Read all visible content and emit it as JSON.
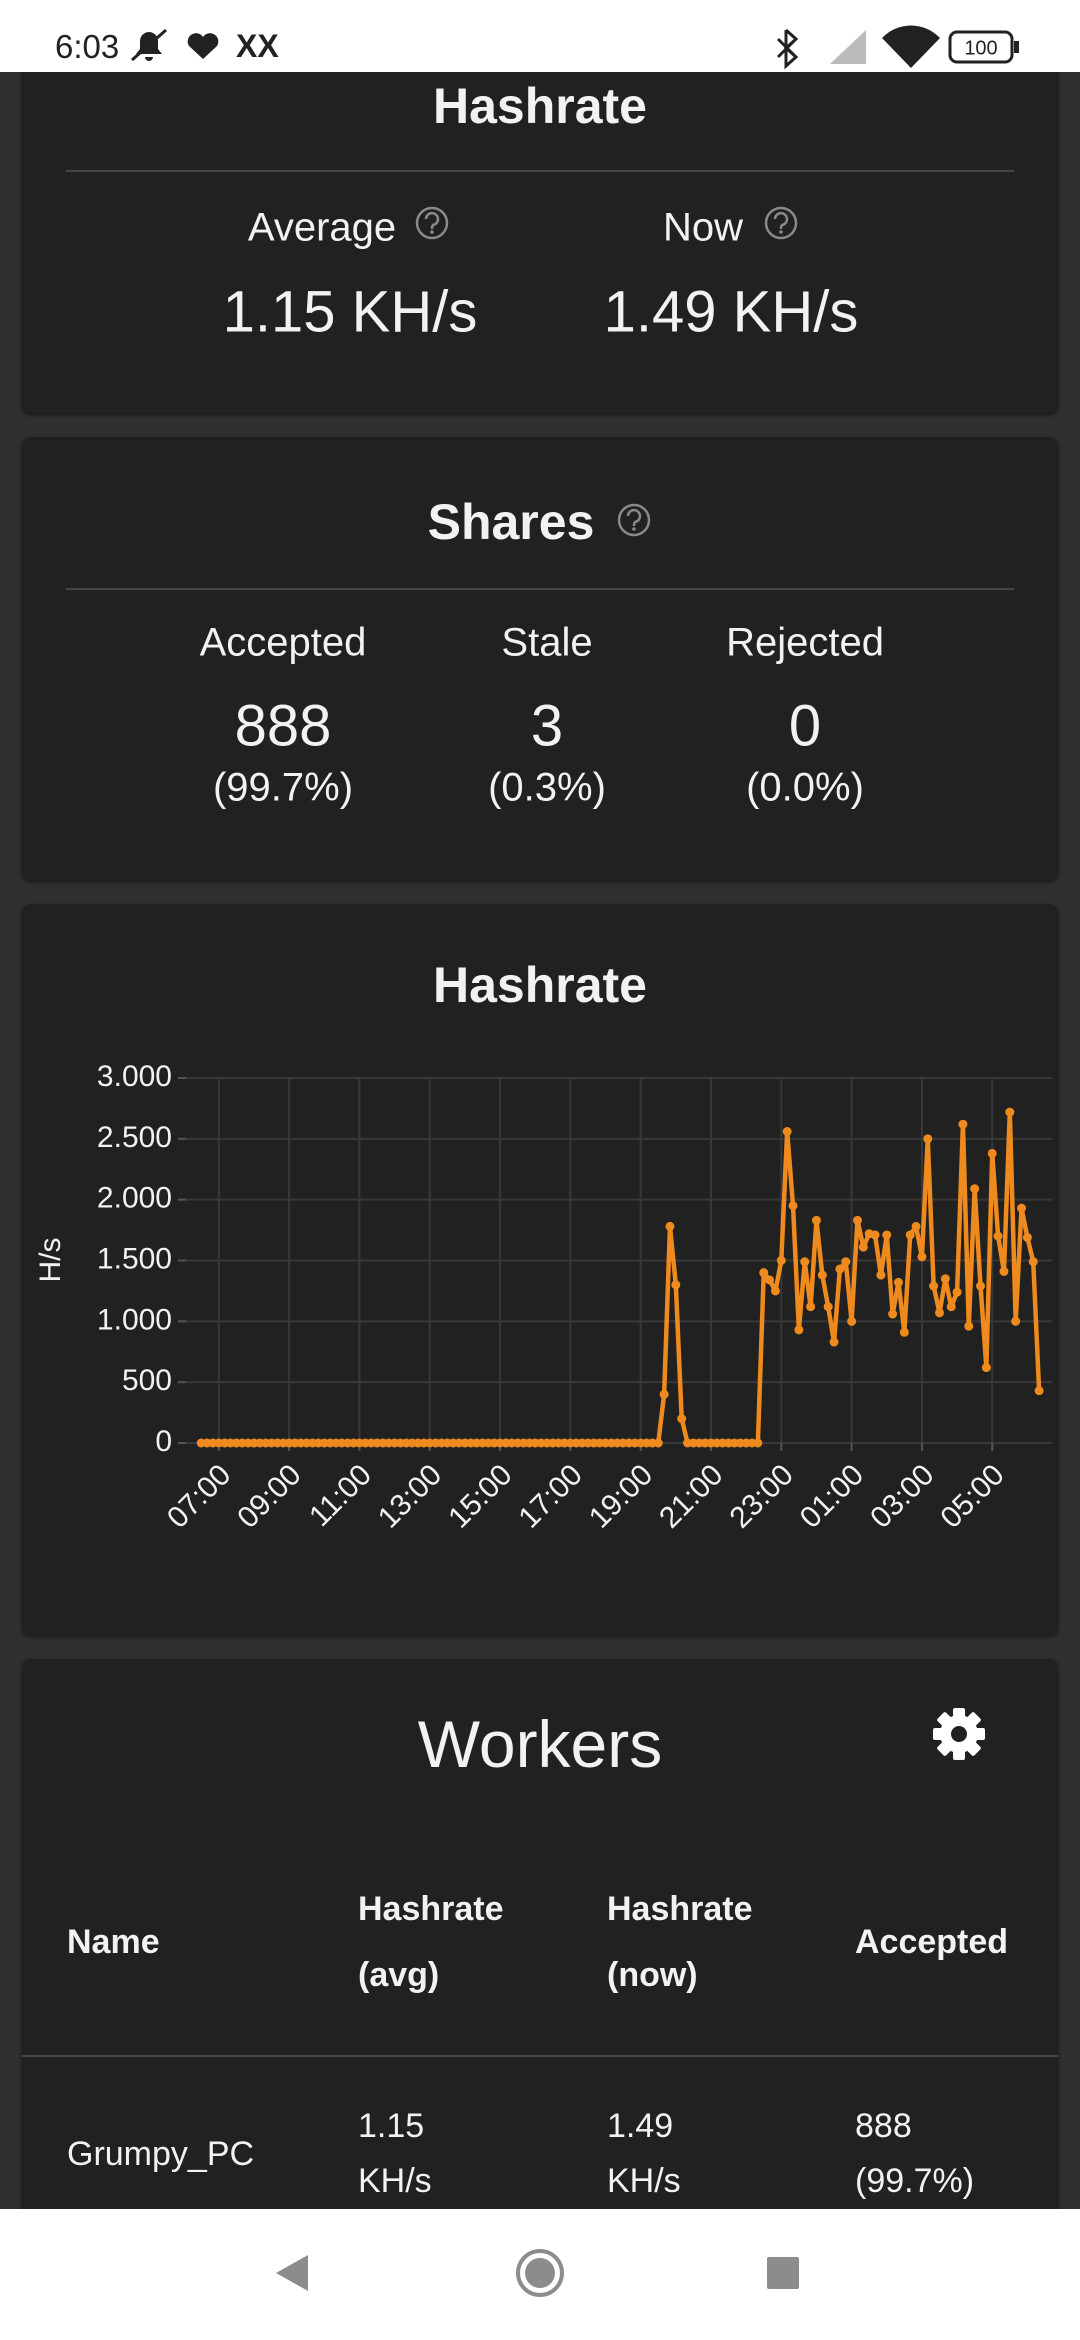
{
  "status_bar": {
    "time": "6:03",
    "carrier": "XX",
    "battery": "100"
  },
  "hashrate_card": {
    "title": "Hashrate",
    "average": {
      "label": "Average",
      "value": "1.15 KH/s"
    },
    "now": {
      "label": "Now",
      "value": "1.49 KH/s"
    }
  },
  "shares_card": {
    "title": "Shares",
    "columns": [
      {
        "label": "Accepted",
        "count": "888",
        "percent": "(99.7%)"
      },
      {
        "label": "Stale",
        "count": "3",
        "percent": "(0.3%)"
      },
      {
        "label": "Rejected",
        "count": "0",
        "percent": "(0.0%)"
      }
    ]
  },
  "chart_data": {
    "type": "line",
    "title": "Hashrate",
    "y_label": "H/s",
    "color": "#ee8a1e",
    "grid": true,
    "x": [
      390,
      400,
      410,
      420,
      430,
      440,
      450,
      460,
      470,
      480,
      490,
      500,
      510,
      520,
      530,
      540,
      550,
      560,
      570,
      580,
      590,
      600,
      610,
      620,
      630,
      640,
      650,
      660,
      670,
      680,
      690,
      700,
      710,
      720,
      730,
      740,
      750,
      760,
      770,
      780,
      790,
      800,
      810,
      820,
      830,
      840,
      850,
      860,
      870,
      880,
      890,
      900,
      910,
      920,
      930,
      940,
      950,
      960,
      970,
      980,
      990,
      1000,
      1010,
      1020,
      1030,
      1040,
      1050,
      1060,
      1070,
      1080,
      1090,
      1100,
      1110,
      1120,
      1130,
      1140,
      1150,
      1160,
      1170,
      1180,
      1190,
      1200,
      1210,
      1220,
      1230,
      1240,
      1250,
      1260,
      1270,
      1280,
      1290,
      1300,
      1310,
      1320,
      1330,
      1340,
      1350,
      1360,
      1370,
      1380,
      1390,
      1400,
      1410,
      1420,
      1430,
      1440,
      1450,
      1460,
      1470,
      1480,
      1490,
      1500,
      1510,
      1520,
      1530,
      1540,
      1550,
      1560,
      1570,
      1580,
      1590,
      1600,
      1610,
      1620,
      1630,
      1640,
      1650,
      1660,
      1670,
      1680,
      1690,
      1700,
      1710,
      1720,
      1730,
      1740,
      1750,
      1760,
      1770,
      1780,
      1790,
      1800,
      1810,
      1820
    ],
    "values": [
      0,
      0,
      0,
      0,
      0,
      0,
      0,
      0,
      0,
      0,
      0,
      0,
      0,
      0,
      0,
      0,
      0,
      0,
      0,
      0,
      0,
      0,
      0,
      0,
      0,
      0,
      0,
      0,
      0,
      0,
      0,
      0,
      0,
      0,
      0,
      0,
      0,
      0,
      0,
      0,
      0,
      0,
      0,
      0,
      0,
      0,
      0,
      0,
      0,
      0,
      0,
      0,
      0,
      0,
      0,
      0,
      0,
      0,
      0,
      0,
      0,
      0,
      0,
      0,
      0,
      0,
      0,
      0,
      0,
      0,
      0,
      0,
      0,
      0,
      0,
      0,
      0,
      0,
      0,
      400,
      1780,
      1300,
      200,
      0,
      0,
      0,
      0,
      0,
      0,
      0,
      0,
      0,
      0,
      0,
      0,
      0,
      1400,
      1340,
      1250,
      1500,
      2560,
      1950,
      930,
      1490,
      1120,
      1830,
      1380,
      1120,
      830,
      1430,
      1490,
      1000,
      1830,
      1610,
      1720,
      1710,
      1380,
      1710,
      1060,
      1320,
      910,
      1710,
      1780,
      1530,
      2500,
      1290,
      1070,
      1350,
      1120,
      1240,
      2620,
      960,
      2090,
      1290,
      620,
      2380,
      1700,
      1410,
      2720,
      1000,
      1930,
      1690,
      1490,
      430
    ],
    "xlim": [
      364,
      1842
    ],
    "xticks": [
      {
        "value": 420,
        "label": "07:00"
      },
      {
        "value": 540,
        "label": "09:00"
      },
      {
        "value": 660,
        "label": "11:00"
      },
      {
        "value": 780,
        "label": "13:00"
      },
      {
        "value": 900,
        "label": "15:00"
      },
      {
        "value": 1020,
        "label": "17:00"
      },
      {
        "value": 1140,
        "label": "19:00"
      },
      {
        "value": 1260,
        "label": "21:00"
      },
      {
        "value": 1380,
        "label": "23:00"
      },
      {
        "value": 1500,
        "label": "01:00"
      },
      {
        "value": 1620,
        "label": "03:00"
      },
      {
        "value": 1740,
        "label": "05:00"
      }
    ],
    "ylim": [
      0,
      3000
    ],
    "yticks": [
      0,
      500,
      {
        "value": 1000,
        "label": "1.000"
      },
      {
        "value": 1500,
        "label": "1.500"
      },
      {
        "value": 2000,
        "label": "2.000"
      },
      {
        "value": 2500,
        "label": "2.500"
      },
      {
        "value": 3000,
        "label": "3.000"
      }
    ]
  },
  "workers": {
    "title": "Workers",
    "table": {
      "headers": [
        "Name",
        "Hashrate (avg)",
        "Hashrate (now)",
        "Accepted"
      ],
      "rows": [
        [
          "Grumpy_PC",
          "1.15 KH/s",
          "1.49 KH/s",
          "888 (99.7%)"
        ]
      ]
    }
  }
}
